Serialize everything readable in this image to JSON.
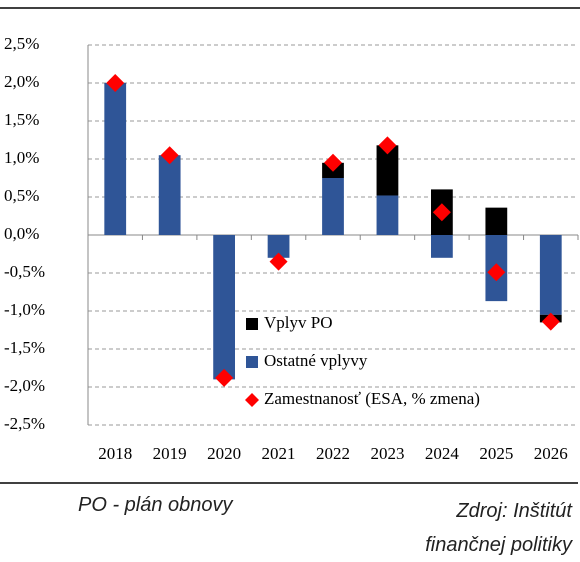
{
  "chart_data": {
    "type": "bar",
    "stacked": true,
    "categories": [
      "2018",
      "2019",
      "2020",
      "2021",
      "2022",
      "2023",
      "2024",
      "2025",
      "2026"
    ],
    "series": [
      {
        "name": "Ostatné vplyvy",
        "type": "bar",
        "color": "#2f5597",
        "values": [
          2.0,
          1.05,
          -1.9,
          -0.3,
          0.75,
          0.52,
          -0.3,
          -0.87,
          -1.05
        ]
      },
      {
        "name": "Vplyv PO",
        "type": "bar",
        "color": "#000000",
        "values": [
          0,
          0,
          0,
          0,
          0.2,
          0.66,
          0.6,
          0.36,
          -0.1
        ]
      },
      {
        "name": "Zamestnanosť (ESA, % zmena)",
        "type": "scatter",
        "color": "#ff0000",
        "values": [
          2.0,
          1.05,
          -1.88,
          -0.35,
          0.95,
          1.18,
          0.3,
          -0.49,
          -1.14
        ]
      }
    ],
    "ylim": [
      -2.5,
      2.5
    ],
    "yticks": [
      {
        "value": -2.5,
        "label": "-2,5%"
      },
      {
        "value": -2.0,
        "label": "-2,0%"
      },
      {
        "value": -1.5,
        "label": "-1,5%"
      },
      {
        "value": -1.0,
        "label": "-1,0%"
      },
      {
        "value": -0.5,
        "label": "-0,5%"
      },
      {
        "value": 0.0,
        "label": "0,0%"
      },
      {
        "value": 0.5,
        "label": "0,5%"
      },
      {
        "value": 1.0,
        "label": "1,0%"
      },
      {
        "value": 1.5,
        "label": "1,5%"
      },
      {
        "value": 2.0,
        "label": "2,0%"
      },
      {
        "value": 2.5,
        "label": "2,5%"
      }
    ],
    "grid": true
  },
  "footer": {
    "note": "PO - plán obnovy",
    "source": "Zdroj: Inštitút finančnej politiky"
  }
}
